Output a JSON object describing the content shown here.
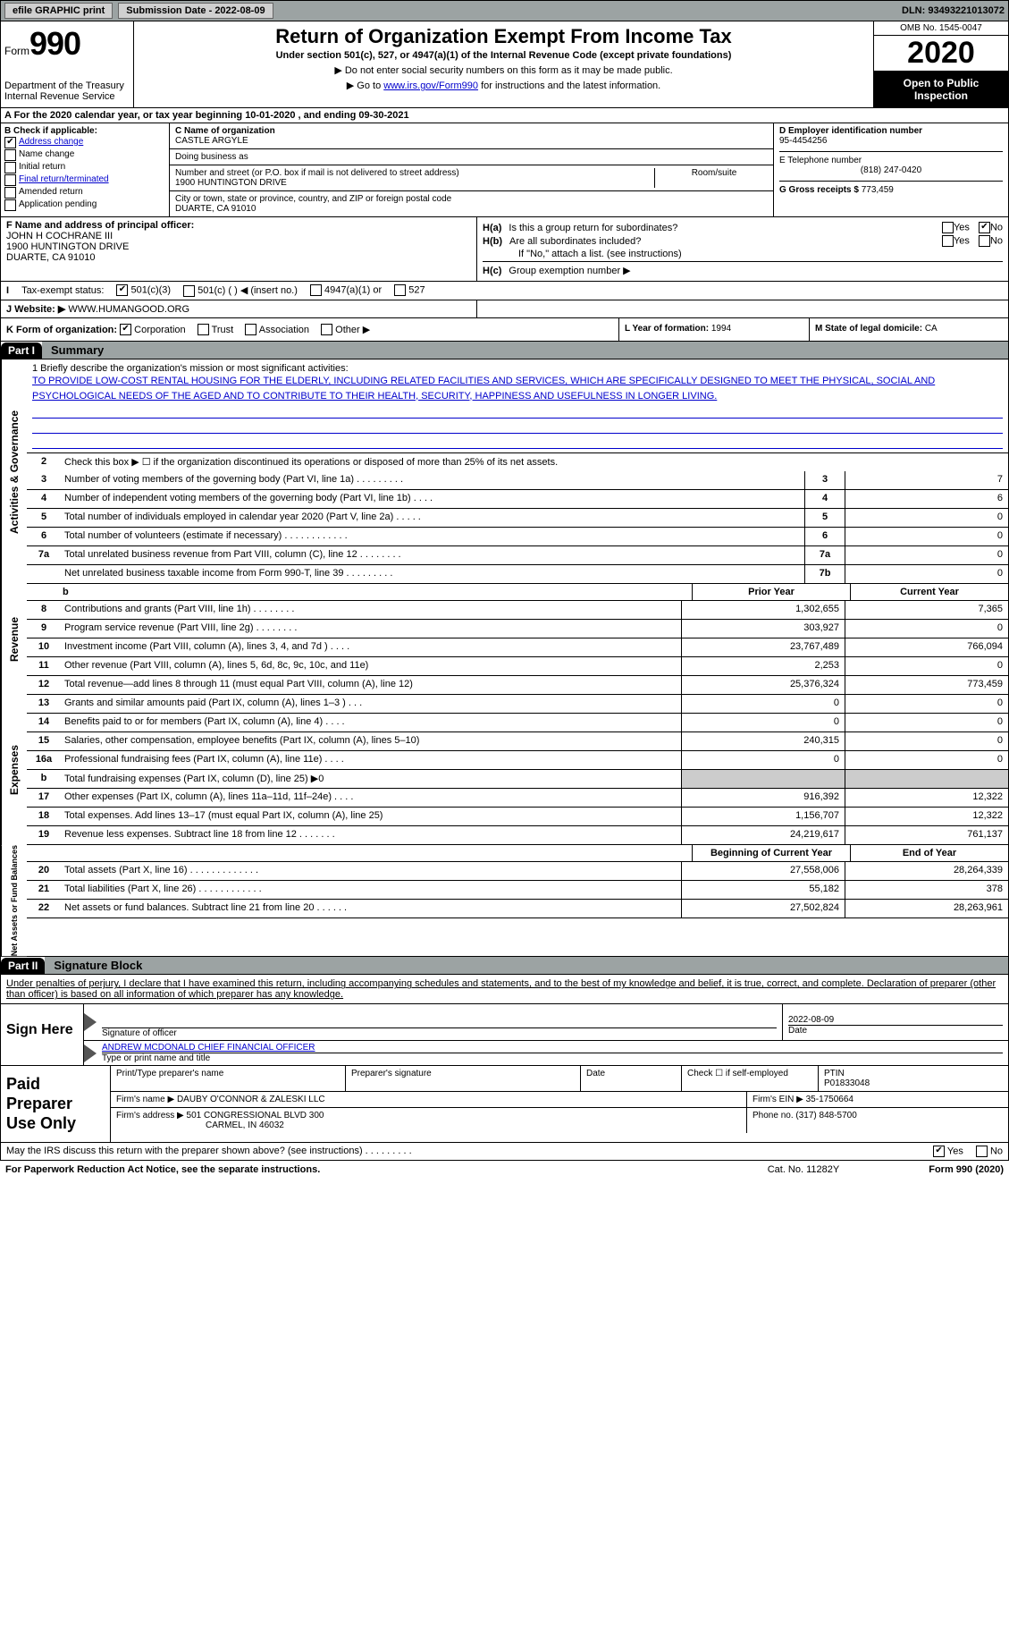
{
  "topbar": {
    "efile_label": "efile GRAPHIC print",
    "submission_label": "Submission Date - 2022-08-09",
    "dln_label": "DLN: 93493221013072"
  },
  "header": {
    "form_prefix": "Form",
    "form_number": "990",
    "dept": "Department of the Treasury\nInternal Revenue Service",
    "title": "Return of Organization Exempt From Income Tax",
    "subtitle": "Under section 501(c), 527, or 4947(a)(1) of the Internal Revenue Code (except private foundations)",
    "note1": "▶ Do not enter social security numbers on this form as it may be made public.",
    "note2_pre": "▶ Go to ",
    "note2_link": "www.irs.gov/Form990",
    "note2_post": " for instructions and the latest information.",
    "omb": "OMB No. 1545-0047",
    "taxyear": "2020",
    "open_public": "Open to Public Inspection"
  },
  "period": {
    "text": "A For the 2020 calendar year, or tax year beginning 10-01-2020   , and ending 09-30-2021"
  },
  "section_b": {
    "label": "B Check if applicable:",
    "address_change": "Address change",
    "name_change": "Name change",
    "initial_return": "Initial return",
    "final_return": "Final return/terminated",
    "amended_return": "Amended return",
    "application_pending": "Application pending"
  },
  "section_c": {
    "name_label": "C Name of organization",
    "name": "CASTLE ARGYLE",
    "dba_label": "Doing business as",
    "dba": "",
    "addr_label": "Number and street (or P.O. box if mail is not delivered to street address)",
    "addr": "1900 HUNTINGTON DRIVE",
    "room_label": "Room/suite",
    "room": "",
    "city_label": "City or town, state or province, country, and ZIP or foreign postal code",
    "city": "DUARTE, CA  91010"
  },
  "section_d": {
    "ein_label": "D Employer identification number",
    "ein": "95-4454256",
    "phone_label": "E Telephone number",
    "phone": "(818) 247-0420",
    "gross_label": "G Gross receipts $",
    "gross": "773,459"
  },
  "section_f": {
    "label": "F Name and address of principal officer:",
    "name": "JOHN H COCHRANE III",
    "addr1": "1900 HUNTINGTON DRIVE",
    "addr2": "DUARTE, CA  91010"
  },
  "section_h": {
    "ha": "Is this a group return for subordinates?",
    "hb": "Are all subordinates included?",
    "hb_note": "If \"No,\" attach a list. (see instructions)",
    "hc": "Group exemption number ▶"
  },
  "section_i": {
    "label": "Tax-exempt status:",
    "opt1": "501(c)(3)",
    "opt2": "501(c) (   ) ◀ (insert no.)",
    "opt3": "4947(a)(1) or",
    "opt4": "527"
  },
  "section_j": {
    "label": "J  Website: ▶",
    "value": "WWW.HUMANGOOD.ORG"
  },
  "section_k": {
    "label": "K Form of organization:",
    "corp": "Corporation",
    "trust": "Trust",
    "assoc": "Association",
    "other": "Other ▶"
  },
  "section_l": {
    "label": "L Year of formation:",
    "value": "1994"
  },
  "section_m": {
    "label": "M State of legal domicile:",
    "value": "CA"
  },
  "part1": {
    "header": "Part I",
    "title": "Summary"
  },
  "mission": {
    "label": "1  Briefly describe the organization's mission or most significant activities:",
    "text": "TO PROVIDE LOW-COST RENTAL HOUSING FOR THE ELDERLY, INCLUDING RELATED FACILITIES AND SERVICES, WHICH ARE SPECIFICALLY DESIGNED TO MEET THE PHYSICAL, SOCIAL AND PSYCHOLOGICAL NEEDS OF THE AGED AND TO CONTRIBUTE TO THEIR HEALTH, SECURITY, HAPPINESS AND USEFULNESS IN LONGER LIVING."
  },
  "vtabs": {
    "gov": "Activities & Governance",
    "rev": "Revenue",
    "exp": "Expenses",
    "net": "Net Assets or Fund Balances"
  },
  "lines_gov": [
    {
      "num": "2",
      "text": "Check this box ▶ ☐ if the organization discontinued its operations or disposed of more than 25% of its net assets."
    },
    {
      "num": "3",
      "text": "Number of voting members of the governing body (Part VI, line 1a)  .   .   .   .   .   .   .   .   .",
      "box": "3",
      "val": "7"
    },
    {
      "num": "4",
      "text": "Number of independent voting members of the governing body (Part VI, line 1b)   .   .   .   .",
      "box": "4",
      "val": "6"
    },
    {
      "num": "5",
      "text": "Total number of individuals employed in calendar year 2020 (Part V, line 2a)   .   .   .   .   .",
      "box": "5",
      "val": "0"
    },
    {
      "num": "6",
      "text": "Total number of volunteers (estimate if necessary)   .   .   .   .   .   .   .   .   .   .   .   .",
      "box": "6",
      "val": "0"
    },
    {
      "num": "7a",
      "text": "Total unrelated business revenue from Part VIII, column (C), line 12   .   .   .   .   .   .   .   .",
      "box": "7a",
      "val": "0"
    },
    {
      "num": "",
      "text": "Net unrelated business taxable income from Form 990-T, line 39   .   .   .   .   .   .   .   .   .",
      "box": "7b",
      "val": "0"
    }
  ],
  "year_headers": {
    "b": "b",
    "prior": "Prior Year",
    "current": "Current Year"
  },
  "lines_rev": [
    {
      "num": "8",
      "text": "Contributions and grants (Part VIII, line 1h)   .   .   .   .   .   .   .   .",
      "prior": "1,302,655",
      "curr": "7,365"
    },
    {
      "num": "9",
      "text": "Program service revenue (Part VIII, line 2g)   .   .   .   .   .   .   .   .",
      "prior": "303,927",
      "curr": "0"
    },
    {
      "num": "10",
      "text": "Investment income (Part VIII, column (A), lines 3, 4, and 7d )   .   .   .   .",
      "prior": "23,767,489",
      "curr": "766,094"
    },
    {
      "num": "11",
      "text": "Other revenue (Part VIII, column (A), lines 5, 6d, 8c, 9c, 10c, and 11e)",
      "prior": "2,253",
      "curr": "0"
    },
    {
      "num": "12",
      "text": "Total revenue—add lines 8 through 11 (must equal Part VIII, column (A), line 12)",
      "prior": "25,376,324",
      "curr": "773,459"
    }
  ],
  "lines_exp": [
    {
      "num": "13",
      "text": "Grants and similar amounts paid (Part IX, column (A), lines 1–3 )   .   .   .",
      "prior": "0",
      "curr": "0"
    },
    {
      "num": "14",
      "text": "Benefits paid to or for members (Part IX, column (A), line 4)   .   .   .   .",
      "prior": "0",
      "curr": "0"
    },
    {
      "num": "15",
      "text": "Salaries, other compensation, employee benefits (Part IX, column (A), lines 5–10)",
      "prior": "240,315",
      "curr": "0"
    },
    {
      "num": "16a",
      "text": "Professional fundraising fees (Part IX, column (A), line 11e)   .   .   .   .",
      "prior": "0",
      "curr": "0"
    },
    {
      "num": "b",
      "text": "Total fundraising expenses (Part IX, column (D), line 25) ▶0",
      "prior": "",
      "curr": ""
    },
    {
      "num": "17",
      "text": "Other expenses (Part IX, column (A), lines 11a–11d, 11f–24e)   .   .   .   .",
      "prior": "916,392",
      "curr": "12,322"
    },
    {
      "num": "18",
      "text": "Total expenses. Add lines 13–17 (must equal Part IX, column (A), line 25)",
      "prior": "1,156,707",
      "curr": "12,322"
    },
    {
      "num": "19",
      "text": "Revenue less expenses. Subtract line 18 from line 12   .   .   .   .   .   .   .",
      "prior": "24,219,617",
      "curr": "761,137"
    }
  ],
  "net_headers": {
    "beg": "Beginning of Current Year",
    "end": "End of Year"
  },
  "lines_net": [
    {
      "num": "20",
      "text": "Total assets (Part X, line 16)   .   .   .   .   .   .   .   .   .   .   .   .   .",
      "prior": "27,558,006",
      "curr": "28,264,339"
    },
    {
      "num": "21",
      "text": "Total liabilities (Part X, line 26)   .   .   .   .   .   .   .   .   .   .   .   .",
      "prior": "55,182",
      "curr": "378"
    },
    {
      "num": "22",
      "text": "Net assets or fund balances. Subtract line 21 from line 20   .   .   .   .   .   .",
      "prior": "27,502,824",
      "curr": "28,263,961"
    }
  ],
  "part2": {
    "header": "Part II",
    "title": "Signature Block"
  },
  "sig": {
    "declaration": "Under penalties of perjury, I declare that I have examined this return, including accompanying schedules and statements, and to the best of my knowledge and belief, it is true, correct, and complete. Declaration of preparer (other than officer) is based on all information of which preparer has any knowledge.",
    "sign_here": "Sign Here",
    "officer_sig_label": "Signature of officer",
    "date": "2022-08-09",
    "date_label": "Date",
    "officer_name": "ANDREW MCDONALD  CHIEF FINANCIAL OFFICER",
    "officer_name_label": "Type or print name and title"
  },
  "paid": {
    "title": "Paid Preparer Use Only",
    "print_label": "Print/Type preparer's name",
    "sig_label": "Preparer's signature",
    "date_label": "Date",
    "check_label": "Check ☐ if self-employed",
    "ptin_label": "PTIN",
    "ptin": "P01833048",
    "firm_name_label": "Firm's name    ▶",
    "firm_name": "DAUBY O'CONNOR & ZALESKI LLC",
    "firm_ein_label": "Firm's EIN ▶",
    "firm_ein": "35-1750664",
    "firm_addr_label": "Firm's address ▶",
    "firm_addr1": "501 CONGRESSIONAL BLVD 300",
    "firm_addr2": "CARMEL, IN  46032",
    "phone_label": "Phone no.",
    "phone": "(317) 848-5700"
  },
  "discuss": {
    "text": "May the IRS discuss this return with the preparer shown above? (see instructions)   .   .   .   .   .   .   .   .   .",
    "yes": "Yes",
    "no": "No"
  },
  "footer": {
    "pra": "For Paperwork Reduction Act Notice, see the separate instructions.",
    "cat": "Cat. No. 11282Y",
    "form": "Form 990 (2020)"
  }
}
